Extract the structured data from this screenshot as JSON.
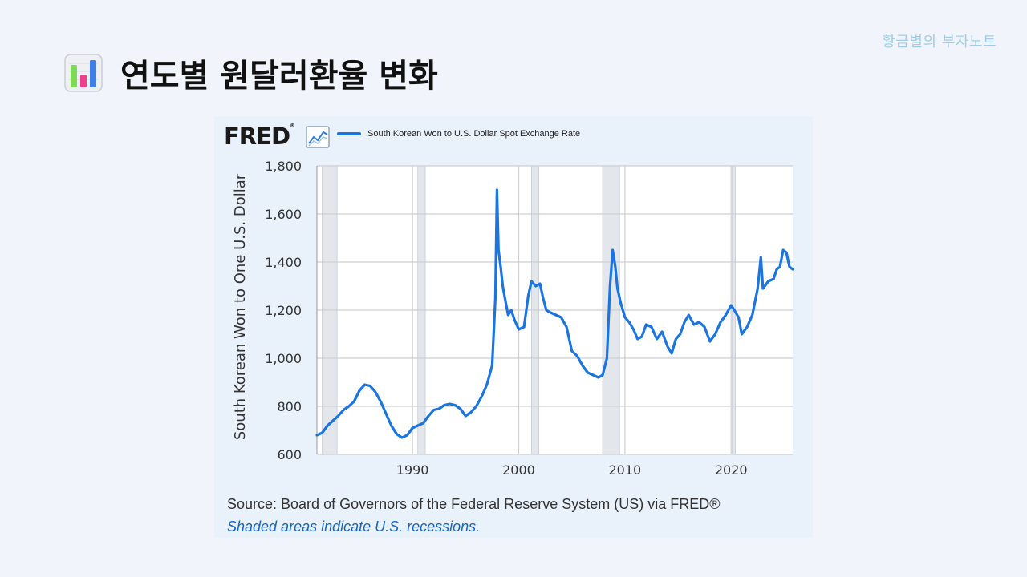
{
  "page": {
    "brand_note": "황금별의 부자노트",
    "title": "연도별 원달러환율 변화",
    "title_icon": "bar-chart-icon"
  },
  "fred": {
    "logo": "FRED",
    "logo_mark": "®",
    "source": "Source: Board of Governors of the Federal Reserve System (US) via FRED®",
    "recession_note": "Shaded areas indicate U.S. recessions."
  },
  "chart_data": {
    "type": "line",
    "title": "South Korean Won to U.S. Dollar Spot Exchange Rate",
    "xlabel": "",
    "ylabel": "South Korean Won to One U.S. Dollar",
    "xlim": [
      1981.0,
      2025.8
    ],
    "ylim": [
      600,
      1800
    ],
    "yticks": [
      600,
      800,
      1000,
      1200,
      1400,
      1600,
      1800
    ],
    "ytick_labels": [
      "600",
      "800",
      "1,000",
      "1,200",
      "1,400",
      "1,600",
      "1,800"
    ],
    "xticks": [
      1990,
      2000,
      2010,
      2020
    ],
    "xtick_labels": [
      "1990",
      "2000",
      "2010",
      "2020"
    ],
    "grid": true,
    "line_color": "#1a75e0",
    "recessions": [
      [
        1981.5,
        1982.9
      ],
      [
        1990.5,
        1991.2
      ],
      [
        2001.2,
        2001.9
      ],
      [
        2007.9,
        2009.5
      ],
      [
        2020.1,
        2020.4
      ]
    ],
    "series": [
      {
        "name": "South Korean Won to U.S. Dollar Spot Exchange Rate",
        "x": [
          1981.0,
          1981.5,
          1982.0,
          1982.5,
          1983.0,
          1983.5,
          1984.0,
          1984.5,
          1985.0,
          1985.5,
          1986.0,
          1986.5,
          1987.0,
          1987.5,
          1988.0,
          1988.5,
          1989.0,
          1989.5,
          1990.0,
          1990.5,
          1991.0,
          1991.5,
          1992.0,
          1992.5,
          1993.0,
          1993.5,
          1994.0,
          1994.5,
          1995.0,
          1995.5,
          1996.0,
          1996.5,
          1997.0,
          1997.5,
          1997.8,
          1997.95,
          1998.1,
          1998.3,
          1998.5,
          1998.7,
          1999.0,
          1999.3,
          1999.6,
          2000.0,
          2000.5,
          2000.9,
          2001.2,
          2001.6,
          2002.0,
          2002.3,
          2002.6,
          2003.0,
          2003.5,
          2004.0,
          2004.5,
          2005.0,
          2005.5,
          2006.0,
          2006.5,
          2007.0,
          2007.5,
          2007.9,
          2008.3,
          2008.6,
          2008.85,
          2009.1,
          2009.3,
          2009.6,
          2010.0,
          2010.4,
          2010.8,
          2011.2,
          2011.6,
          2012.0,
          2012.5,
          2013.0,
          2013.5,
          2014.0,
          2014.4,
          2014.8,
          2015.2,
          2015.6,
          2016.0,
          2016.5,
          2017.0,
          2017.5,
          2018.0,
          2018.5,
          2019.0,
          2019.5,
          2020.0,
          2020.3,
          2020.7,
          2021.0,
          2021.5,
          2022.0,
          2022.5,
          2022.8,
          2023.0,
          2023.5,
          2024.0,
          2024.3,
          2024.6,
          2024.9,
          2025.2,
          2025.5,
          2025.8
        ],
        "values": [
          680,
          690,
          720,
          740,
          760,
          785,
          800,
          820,
          865,
          890,
          885,
          860,
          820,
          770,
          720,
          685,
          670,
          680,
          710,
          720,
          730,
          760,
          785,
          790,
          805,
          810,
          805,
          790,
          760,
          775,
          800,
          840,
          890,
          970,
          1250,
          1700,
          1450,
          1380,
          1300,
          1250,
          1180,
          1200,
          1160,
          1120,
          1130,
          1260,
          1320,
          1300,
          1310,
          1250,
          1200,
          1190,
          1180,
          1170,
          1130,
          1030,
          1010,
          970,
          940,
          930,
          920,
          930,
          1000,
          1300,
          1450,
          1380,
          1290,
          1230,
          1170,
          1150,
          1120,
          1080,
          1090,
          1140,
          1130,
          1080,
          1110,
          1050,
          1020,
          1080,
          1100,
          1150,
          1180,
          1140,
          1150,
          1130,
          1070,
          1100,
          1150,
          1180,
          1220,
          1200,
          1170,
          1100,
          1130,
          1180,
          1290,
          1420,
          1290,
          1320,
          1330,
          1370,
          1380,
          1450,
          1440,
          1380,
          1370
        ]
      }
    ]
  }
}
